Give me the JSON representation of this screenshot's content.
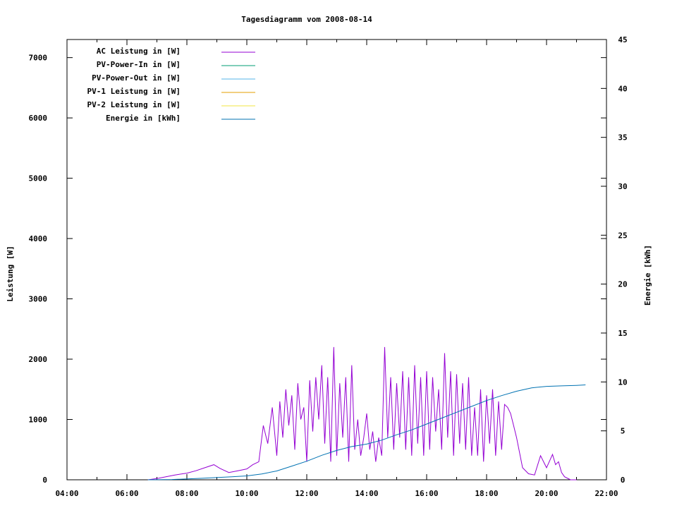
{
  "chart_data": {
    "type": "line",
    "title": "Tagesdiagramm vom 2008-08-14",
    "xlabel": "",
    "ylabel": "Leistung [W]",
    "y2label": "Energie [kWh]",
    "xlim_hours": [
      4,
      22
    ],
    "xticks": [
      "04:00",
      "06:00",
      "08:00",
      "10:00",
      "12:00",
      "14:00",
      "16:00",
      "18:00",
      "20:00",
      "22:00"
    ],
    "ylim": [
      0,
      7300
    ],
    "yticks": [
      "0",
      "1000",
      "2000",
      "3000",
      "4000",
      "5000",
      "6000",
      "7000"
    ],
    "y2lim": [
      0,
      45
    ],
    "y2ticks": [
      "0",
      "5",
      "10",
      "15",
      "20",
      "25",
      "30",
      "35",
      "40",
      "45"
    ],
    "grid": false,
    "legend_position": "top-left",
    "legend": [
      {
        "label": "AC Leistung in [W]",
        "color": "#9400d3"
      },
      {
        "label": "PV-Power-In in [W]",
        "color": "#009e73"
      },
      {
        "label": "PV-Power-Out in [W]",
        "color": "#56b4e9"
      },
      {
        "label": "PV-1 Leistung in [W]",
        "color": "#e69f00"
      },
      {
        "label": "PV-2 Leistung in [W]",
        "color": "#f0e442"
      },
      {
        "label": "Energie in [kWh]",
        "color": "#0072b2"
      }
    ],
    "series": [
      {
        "name": "AC Leistung in [W]",
        "axis": "y",
        "x_hours": [
          6.7,
          7.0,
          7.3,
          7.6,
          8.0,
          8.3,
          8.6,
          8.9,
          9.1,
          9.4,
          9.7,
          10.0,
          10.2,
          10.4,
          10.55,
          10.7,
          10.85,
          11.0,
          11.1,
          11.2,
          11.3,
          11.4,
          11.5,
          11.6,
          11.7,
          11.8,
          11.9,
          12.0,
          12.1,
          12.2,
          12.3,
          12.4,
          12.5,
          12.6,
          12.7,
          12.8,
          12.9,
          13.0,
          13.1,
          13.2,
          13.3,
          13.4,
          13.5,
          13.6,
          13.7,
          13.8,
          13.9,
          14.0,
          14.1,
          14.2,
          14.3,
          14.4,
          14.5,
          14.6,
          14.7,
          14.8,
          14.9,
          15.0,
          15.1,
          15.2,
          15.3,
          15.4,
          15.5,
          15.6,
          15.7,
          15.8,
          15.9,
          16.0,
          16.1,
          16.2,
          16.3,
          16.4,
          16.5,
          16.6,
          16.7,
          16.8,
          16.9,
          17.0,
          17.1,
          17.2,
          17.3,
          17.4,
          17.5,
          17.6,
          17.7,
          17.8,
          17.9,
          18.0,
          18.1,
          18.2,
          18.3,
          18.4,
          18.5,
          18.6,
          18.7,
          18.8,
          18.9,
          19.0,
          19.2,
          19.4,
          19.6,
          19.8,
          20.0,
          20.2,
          20.3,
          20.4,
          20.5,
          20.6,
          20.8,
          21.0
        ],
        "values": [
          0,
          20,
          50,
          80,
          110,
          150,
          200,
          250,
          190,
          120,
          150,
          180,
          250,
          300,
          900,
          600,
          1200,
          400,
          1300,
          700,
          1500,
          900,
          1400,
          500,
          1600,
          1000,
          1200,
          300,
          1650,
          800,
          1700,
          1000,
          1900,
          600,
          1700,
          300,
          2200,
          400,
          1600,
          700,
          1700,
          300,
          1900,
          500,
          1000,
          400,
          700,
          1100,
          500,
          800,
          300,
          700,
          400,
          2200,
          700,
          1700,
          500,
          1600,
          700,
          1800,
          500,
          1700,
          400,
          1900,
          600,
          1700,
          400,
          1800,
          500,
          1700,
          800,
          1500,
          500,
          2100,
          700,
          1800,
          400,
          1750,
          600,
          1600,
          500,
          1700,
          400,
          1200,
          400,
          1500,
          300,
          1400,
          600,
          1500,
          400,
          1300,
          500,
          1250,
          1200,
          1100,
          900,
          700,
          200,
          100,
          80,
          400,
          200,
          420,
          250,
          300,
          120,
          50,
          0,
          0
        ]
      },
      {
        "name": "Energie in [kWh]",
        "axis": "y2",
        "x_hours": [
          6.7,
          7.5,
          8.5,
          9.5,
          10.0,
          10.5,
          11.0,
          11.5,
          12.0,
          12.5,
          13.0,
          13.5,
          14.0,
          14.5,
          15.0,
          15.5,
          16.0,
          16.5,
          17.0,
          17.5,
          18.0,
          18.5,
          19.0,
          19.5,
          20.0,
          20.5,
          21.0,
          21.3
        ],
        "values": [
          0,
          0.03,
          0.15,
          0.3,
          0.4,
          0.6,
          0.9,
          1.4,
          1.9,
          2.5,
          3.0,
          3.4,
          3.65,
          4.05,
          4.6,
          5.1,
          5.7,
          6.3,
          6.9,
          7.5,
          8.1,
          8.6,
          9.05,
          9.4,
          9.55,
          9.6,
          9.65,
          9.7
        ]
      },
      {
        "name": "PV-Power-In in [W]",
        "axis": "y",
        "x_hours": [],
        "values": []
      },
      {
        "name": "PV-Power-Out in [W]",
        "axis": "y",
        "x_hours": [],
        "values": []
      },
      {
        "name": "PV-1 Leistung in [W]",
        "axis": "y",
        "x_hours": [],
        "values": []
      },
      {
        "name": "PV-2 Leistung in [W]",
        "axis": "y",
        "x_hours": [],
        "values": []
      }
    ]
  }
}
